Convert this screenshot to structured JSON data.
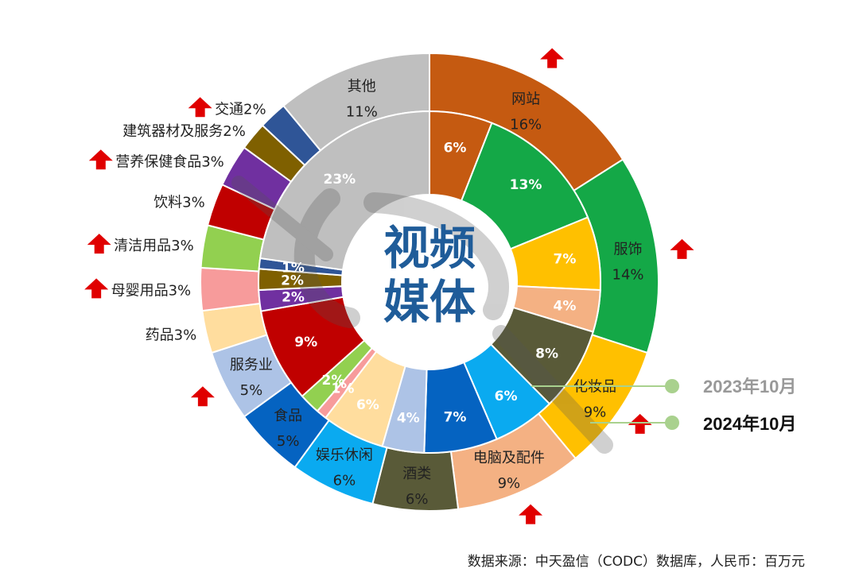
{
  "chart_data": {
    "type": "donut",
    "center_title": [
      "视频",
      "媒体"
    ],
    "series": [
      {
        "name": "2023年10月",
        "labels": [
          "6%",
          "13%",
          "7%",
          "4%",
          "8%",
          "6%",
          "7%",
          "4%",
          "6%",
          "1%",
          "2%",
          "9%",
          "2%",
          "2%",
          "1%",
          "23%"
        ],
        "values": [
          6,
          13,
          7,
          4,
          8,
          6,
          7,
          4,
          6,
          1,
          2,
          9,
          2,
          2,
          1,
          23
        ],
        "colors": [
          "#c55a11",
          "#14a847",
          "#ffc000",
          "#f4b183",
          "#595a38",
          "#0aaaf0",
          "#0563c1",
          "#adc3e6",
          "#ffdd9e",
          "#f79b9b",
          "#92d050",
          "#c00000",
          "#7030a0",
          "#7f6000",
          "#2f5597",
          "#bfbfbf"
        ]
      },
      {
        "name": "2024年10月",
        "categories": [
          "网站",
          "服饰",
          "化妆品",
          "电脑及配件",
          "酒类",
          "娱乐休闲",
          "食品",
          "服务业",
          "药品",
          "母婴用品",
          "清洁用品",
          "饮料",
          "营养保健食品",
          "建筑器材及服务",
          "交通",
          "其他"
        ],
        "labels": [
          "16%",
          "14%",
          "9%",
          "9%",
          "6%",
          "6%",
          "5%",
          "5%",
          "3%",
          "3%",
          "3%",
          "3%",
          "3%",
          "2%",
          "2%",
          "11%"
        ],
        "values": [
          16,
          14,
          9,
          9,
          6,
          6,
          5,
          5,
          3,
          3,
          3,
          3,
          3,
          2,
          2,
          11
        ],
        "colors": [
          "#c55a11",
          "#14a847",
          "#ffc000",
          "#f4b183",
          "#595a38",
          "#0aaaf0",
          "#0563c1",
          "#adc3e6",
          "#ffdd9e",
          "#f79b9b",
          "#92d050",
          "#c00000",
          "#7030a0",
          "#7f6000",
          "#2f5597",
          "#bfbfbf"
        ],
        "rising": [
          "网站",
          "服饰",
          "化妆品",
          "电脑及配件",
          "服务业",
          "母婴用品",
          "清洁用品",
          "营养保健食品",
          "交通"
        ]
      }
    ],
    "legend": [
      {
        "name": "2023年10月",
        "ring": "inner",
        "color": "#999999"
      },
      {
        "name": "2024年10月",
        "ring": "outer",
        "color": "#111111"
      }
    ],
    "accent_arrow_color": "#e00000",
    "legend_line_color": "#a9d18e"
  },
  "source_note": "数据来源：中天盈信（CODC）数据库，人民币：百万元"
}
